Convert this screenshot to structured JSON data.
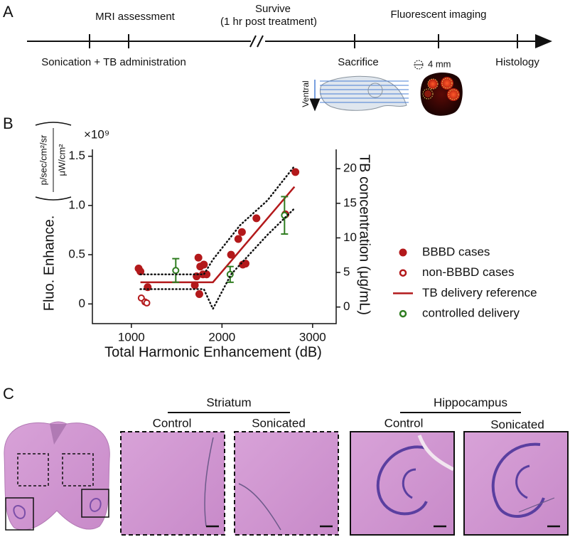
{
  "panel_a": {
    "label": "A",
    "mri": "MRI assessment",
    "survive": "Survive",
    "survive_note": "(1 hr post treatment)",
    "imaging": "Fluorescent imaging",
    "sonication": "Sonication + TB administration",
    "sacrifice": "Sacrifice",
    "scale": "4 mm",
    "histology": "Histology",
    "ventral": "Ventral"
  },
  "chart_data": {
    "type": "scatter",
    "panel_label": "B",
    "xlabel": "Total Harmonic Enhancement (dB)",
    "ylabel": "Fluo. Enhance.",
    "yunit_numerator": "p/sec/cm²/sr",
    "yunit_denominator": "μW/cm²",
    "y_multiplier": "×10⁹",
    "y2label": "TB concentration (μg/mL)",
    "xlim": [
      570,
      3260
    ],
    "xticks": [
      1000,
      2000,
      3000
    ],
    "ylim": [
      -0.2,
      1.57
    ],
    "yticks": [
      0,
      0.5,
      {
        "value": 1,
        "label": "1.0"
      },
      1.5
    ],
    "y2lim": [
      -2.4,
      22.8
    ],
    "y2ticks": [
      0,
      5,
      10,
      15,
      20
    ],
    "series": [
      {
        "name": "BBBD cases",
        "color": "#b3191b",
        "style": "filled",
        "x": [
          1080,
          1100,
          1180,
          1700,
          1720,
          1740,
          1750,
          1760,
          1790,
          1800,
          1830,
          2100,
          2180,
          2220,
          2230,
          2260,
          2380,
          2700,
          2810
        ],
        "values": [
          0.36,
          0.33,
          0.17,
          0.19,
          0.28,
          0.47,
          0.1,
          0.38,
          0.3,
          0.4,
          0.3,
          0.5,
          0.66,
          0.73,
          0.4,
          0.41,
          0.87,
          0.91,
          1.34
        ]
      },
      {
        "name": "non-BBBD cases",
        "color": "#b3191b",
        "style": "open",
        "x": [
          1110,
          1150,
          1170
        ],
        "values": [
          0.06,
          0.02,
          0.01
        ]
      },
      {
        "name": "TB delivery reference",
        "color": "#b3191b",
        "style": "line",
        "x": [
          1100,
          1900,
          2800
        ],
        "values": [
          0.22,
          0.22,
          1.19
        ]
      },
      {
        "name": "controlled delivery",
        "color": "#2f7d20",
        "style": "open",
        "x": [
          1490,
          2090,
          2690
        ],
        "values": [
          0.34,
          0.3,
          0.9
        ],
        "errors": [
          0.12,
          0.08,
          0.19
        ]
      },
      {
        "color": "#111111",
        "style": "dotted",
        "x": [
          1100,
          1800,
          1900,
          2200,
          2500,
          2800
        ],
        "values": [
          0.3,
          0.3,
          0.45,
          0.8,
          1.05,
          1.4
        ]
      },
      {
        "color": "#111111",
        "style": "dotted",
        "x": [
          1100,
          1800,
          1900,
          2100,
          2500,
          2800
        ],
        "values": [
          0.15,
          0.15,
          -0.05,
          0.3,
          0.7,
          0.97
        ]
      }
    ]
  },
  "panel_c": {
    "label": "C",
    "striatum": "Striatum",
    "hippocampus": "Hippocampus",
    "images": [
      "Control",
      "Sonicated",
      "Control",
      "Sonicated"
    ]
  }
}
